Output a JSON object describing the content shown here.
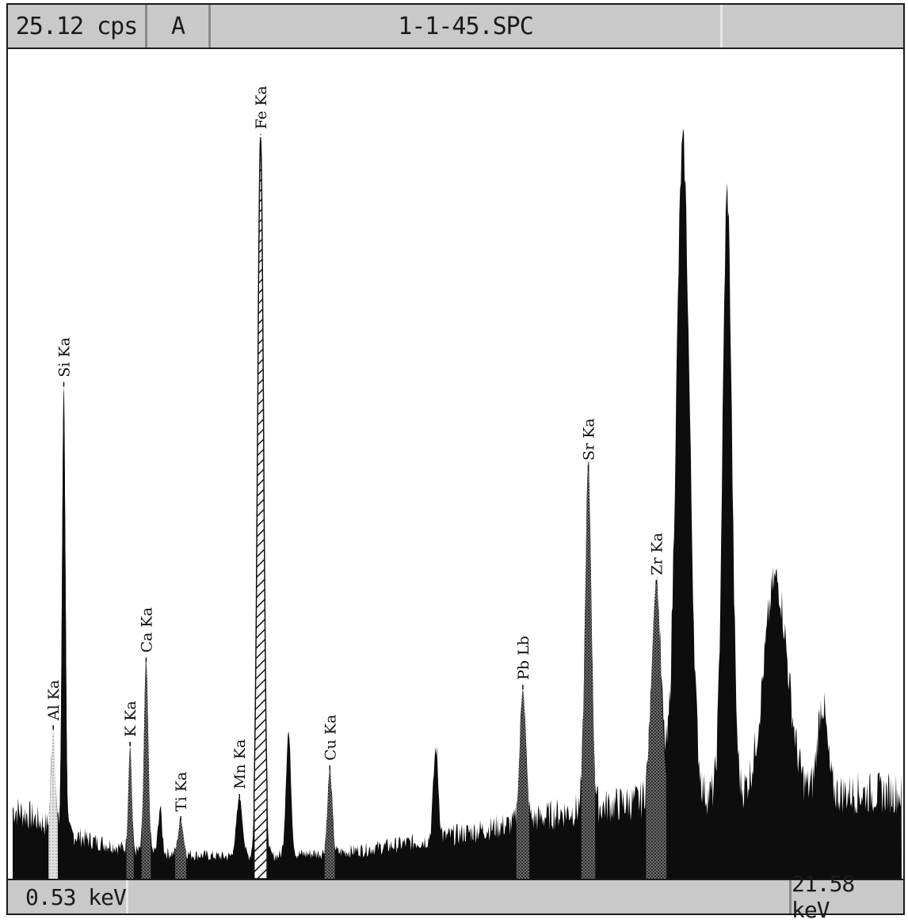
{
  "header": {
    "count_rate": "25.12 cps",
    "mode": "A",
    "filename": "1-1-45.SPC"
  },
  "footer": {
    "start_energy": "0.53 keV",
    "end_energy": "21.58 keV"
  },
  "chart_data": {
    "type": "area",
    "title": "",
    "xlabel": "",
    "ylabel": "",
    "xlim": [
      0.53,
      21.58
    ],
    "ylim": [
      0,
      100
    ],
    "baseline": [
      [
        0.53,
        8.5
      ],
      [
        1.0,
        7.5
      ],
      [
        1.5,
        6.0
      ],
      [
        2.5,
        4.5
      ],
      [
        3.5,
        3.3
      ],
      [
        4.5,
        3.0
      ],
      [
        5.5,
        2.7
      ],
      [
        6.5,
        2.7
      ],
      [
        7.5,
        3.0
      ],
      [
        8.5,
        3.3
      ],
      [
        9.5,
        4.0
      ],
      [
        10.5,
        4.8
      ],
      [
        11.5,
        5.8
      ],
      [
        12.5,
        6.8
      ],
      [
        13.5,
        8.0
      ],
      [
        14.5,
        8.8
      ],
      [
        15.5,
        9.5
      ],
      [
        16.5,
        10.0
      ],
      [
        17.5,
        10.2
      ],
      [
        18.5,
        10.3
      ],
      [
        19.5,
        10.4
      ],
      [
        20.5,
        10.4
      ],
      [
        21.58,
        10.4
      ]
    ],
    "peaks": [
      {
        "energy": 1.49,
        "height": 12,
        "width": 0.05,
        "label": "Al Ka",
        "fill": "light"
      },
      {
        "energy": 1.74,
        "height": 54,
        "width": 0.04,
        "label": "Si Ka",
        "fill": "dark"
      },
      {
        "energy": 3.31,
        "height": 12.5,
        "width": 0.04,
        "label": "K Ka",
        "fill": "gray"
      },
      {
        "energy": 3.69,
        "height": 23,
        "width": 0.05,
        "label": "Ca Ka",
        "fill": "gray"
      },
      {
        "energy": 4.02,
        "height": 5.5,
        "width": 0.045,
        "label": "",
        "fill": "dark"
      },
      {
        "energy": 4.51,
        "height": 4,
        "width": 0.06,
        "label": "Ti Ka",
        "fill": "gray"
      },
      {
        "energy": 5.9,
        "height": 7,
        "width": 0.07,
        "label": "Mn Ka",
        "fill": "dark"
      },
      {
        "energy": 6.4,
        "height": 87,
        "width": 0.07,
        "label": "Fe Ka",
        "fill": "hatch"
      },
      {
        "energy": 7.06,
        "height": 15,
        "width": 0.06,
        "label": "",
        "fill": "dark"
      },
      {
        "energy": 8.04,
        "height": 10,
        "width": 0.055,
        "label": "Cu Ka",
        "fill": "gray"
      },
      {
        "energy": 10.55,
        "height": 11,
        "width": 0.06,
        "label": "",
        "fill": "dark"
      },
      {
        "energy": 12.61,
        "height": 16,
        "width": 0.07,
        "label": "Pb Lb",
        "fill": "gray"
      },
      {
        "energy": 14.16,
        "height": 41,
        "width": 0.075,
        "label": "Sr Ka",
        "fill": "gray"
      },
      {
        "energy": 15.77,
        "height": 26,
        "width": 0.11,
        "label": "Zr Ka",
        "fill": "gray"
      },
      {
        "energy": 16.4,
        "height": 79,
        "width": 0.16,
        "label": "",
        "fill": "dark"
      },
      {
        "energy": 17.45,
        "height": 73,
        "width": 0.11,
        "label": "",
        "fill": "dark"
      },
      {
        "energy": 18.6,
        "height": 26,
        "width": 0.28,
        "label": "",
        "fill": "dark"
      },
      {
        "energy": 19.7,
        "height": 11,
        "width": 0.11,
        "label": "",
        "fill": "dark"
      }
    ]
  }
}
